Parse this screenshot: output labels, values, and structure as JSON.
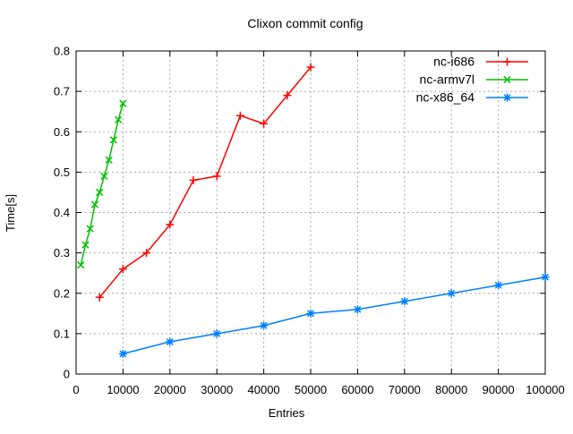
{
  "window": {
    "background": "#ffffff"
  },
  "chart_data": {
    "type": "line",
    "title": "Clixon commit config",
    "xlabel": "Entries",
    "ylabel": "Time[s]",
    "xlim": [
      0,
      100000
    ],
    "ylim": [
      0,
      0.8
    ],
    "grid": true,
    "grid_color": "#aaaaaa",
    "border_color": "#000000",
    "legend_position": "top-right-inside",
    "x_ticks": [
      0,
      10000,
      20000,
      30000,
      40000,
      50000,
      60000,
      70000,
      80000,
      90000,
      100000
    ],
    "x_tick_labels": [
      "0",
      "10000",
      "20000",
      "30000",
      "40000",
      "50000",
      "60000",
      "70000",
      "80000",
      "90000",
      "100000"
    ],
    "y_ticks": [
      0,
      0.1,
      0.2,
      0.3,
      0.4,
      0.5,
      0.6,
      0.7,
      0.8
    ],
    "y_tick_labels": [
      "0",
      "0.1",
      "0.2",
      "0.3",
      "0.4",
      "0.5",
      "0.6",
      "0.7",
      "0.8"
    ],
    "series": [
      {
        "name": "nc-i686",
        "color": "#ff0000",
        "marker": "plus",
        "x": [
          5000,
          10000,
          15000,
          20000,
          25000,
          30000,
          35000,
          40000,
          45000,
          50000
        ],
        "y": [
          0.19,
          0.26,
          0.3,
          0.37,
          0.48,
          0.49,
          0.64,
          0.62,
          0.69,
          0.76
        ]
      },
      {
        "name": "nc-armv7l",
        "color": "#00c000",
        "marker": "cross",
        "x": [
          1000,
          2000,
          3000,
          4000,
          5000,
          6000,
          7000,
          8000,
          9000,
          10000
        ],
        "y": [
          0.27,
          0.32,
          0.36,
          0.42,
          0.45,
          0.49,
          0.53,
          0.58,
          0.63,
          0.67
        ]
      },
      {
        "name": "nc-x86_64",
        "color": "#0080ff",
        "marker": "star",
        "x": [
          10000,
          20000,
          30000,
          40000,
          50000,
          60000,
          70000,
          80000,
          90000,
          100000
        ],
        "y": [
          0.05,
          0.08,
          0.1,
          0.12,
          0.15,
          0.16,
          0.18,
          0.2,
          0.22,
          0.24
        ]
      }
    ]
  }
}
